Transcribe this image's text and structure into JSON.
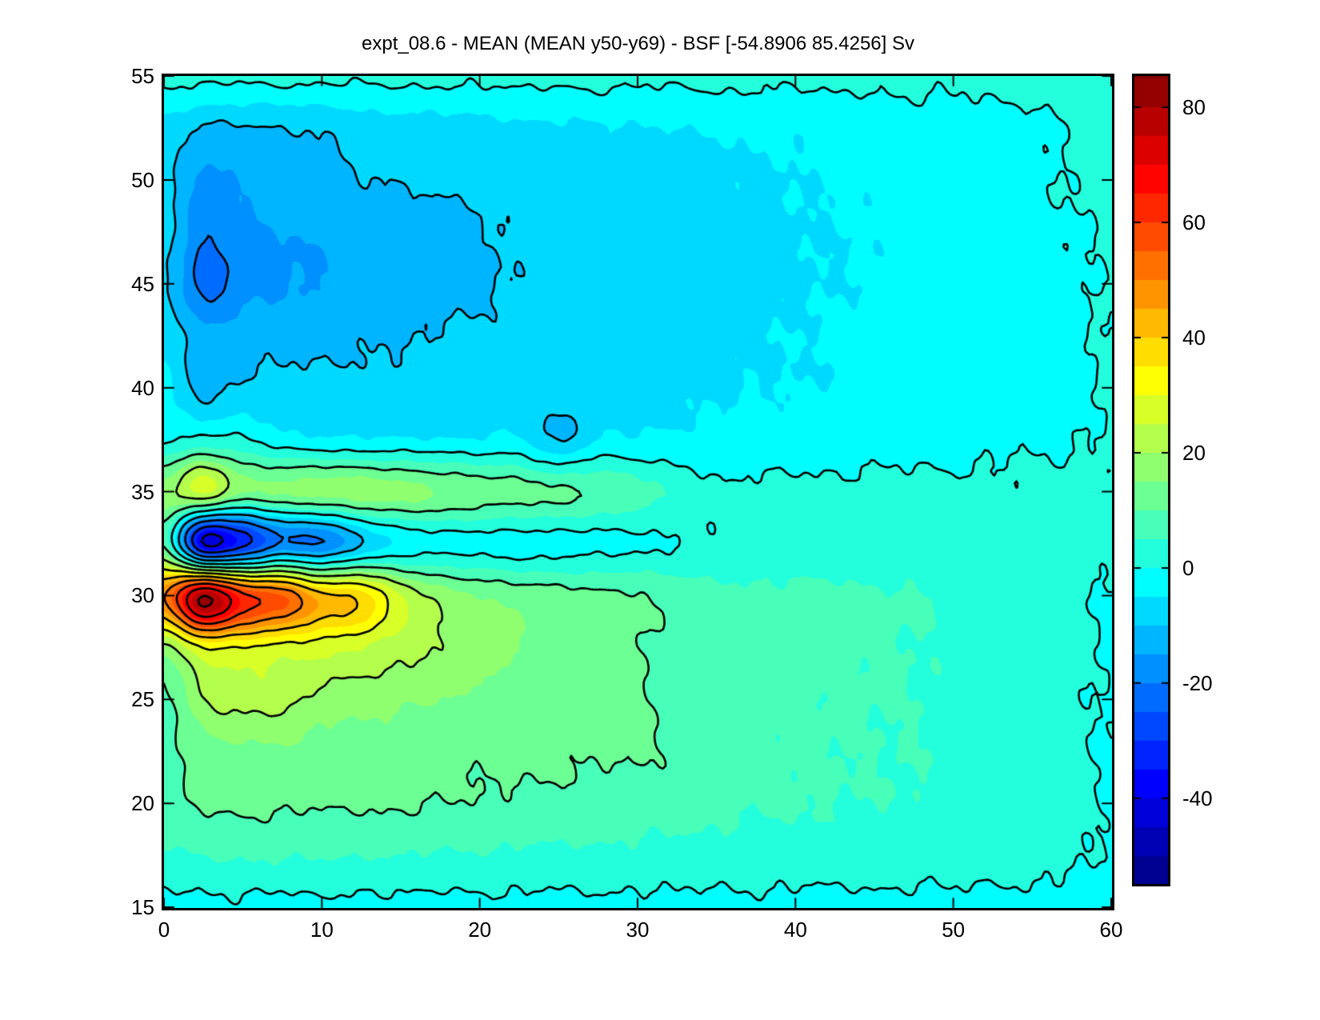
{
  "title": "expt_08.6 - MEAN (MEAN y50-y69) - BSF [-54.8906 85.4256] Sv",
  "chart_data": {
    "type": "heatmap",
    "title": "expt_08.6 - MEAN (MEAN y50-y69) - BSF [-54.8906 85.4256] Sv",
    "units": "Sv",
    "x_range": [
      0,
      60
    ],
    "y_range": [
      15,
      55
    ],
    "x_ticks": [
      0,
      10,
      20,
      30,
      40,
      50,
      60
    ],
    "y_ticks": [
      55,
      50,
      45,
      40,
      35,
      30,
      25,
      20,
      15
    ],
    "colorbar": {
      "ticks": [
        80,
        60,
        40,
        20,
        0,
        -20,
        -40
      ],
      "vmin": -54.8906,
      "vmax": 85.4256,
      "band_step": 5,
      "colormap": "jet"
    },
    "contour": {
      "solid_levels": [
        0,
        10,
        20,
        30,
        40,
        50,
        60,
        70,
        80
      ],
      "dashed_levels": [
        -10,
        -20,
        -30,
        -40
      ],
      "line_color": "#000000"
    },
    "grid_x": [
      0,
      2.5,
      5,
      7.5,
      10,
      12.5,
      15,
      17.5,
      20,
      22.5,
      25,
      27.5,
      30,
      32.5,
      35,
      37.5,
      40,
      42.5,
      45,
      47.5,
      50,
      52.5,
      55,
      57.5,
      60
    ],
    "grid_y": [
      55,
      52.5,
      50,
      47.5,
      45,
      42.5,
      40,
      37.5,
      35,
      32.5,
      30,
      27.5,
      25,
      22.5,
      20,
      17.5,
      15
    ],
    "values": [
      [
        1,
        1.5,
        1,
        1.5,
        1,
        1,
        1.5,
        1,
        1,
        1.5,
        1,
        1.5,
        1,
        1,
        1.5,
        1,
        1,
        1.5,
        1,
        1.5,
        1,
        1.5,
        2,
        1.5,
        2
      ],
      [
        -6,
        -10.5,
        -10.5,
        -10,
        -9.5,
        -8,
        -7.5,
        -7,
        -6.5,
        -6,
        -6,
        -5.5,
        -5,
        -5,
        -4.5,
        -4,
        -4,
        -3.5,
        -3,
        -2.5,
        -2,
        -1.5,
        -1,
        0.5,
        1
      ],
      [
        -8,
        -16,
        -14,
        -12,
        -11,
        -10,
        -9.5,
        -9,
        -8.5,
        -8.5,
        -8,
        -7.5,
        -7,
        -6.5,
        -6,
        -5.5,
        -5,
        -4.5,
        -4,
        -3.5,
        -3,
        -2,
        -1,
        0.5,
        0.5
      ],
      [
        -8,
        -19,
        -16,
        -15,
        -14,
        -13,
        -12,
        -11.5,
        -10.5,
        -9,
        -8.5,
        -8,
        -7.5,
        -7,
        -6.5,
        -6,
        -5.5,
        -5,
        -4.5,
        -4,
        -3,
        -2,
        -1.5,
        -0.5,
        0.5
      ],
      [
        -9,
        -22,
        -17,
        -15.5,
        -15,
        -14,
        -13,
        -12,
        -11,
        -9.5,
        -9,
        -8.5,
        -8,
        -7.5,
        -7,
        -6,
        -5.5,
        -5,
        -4.5,
        -4,
        -3.5,
        -3,
        -2,
        -1,
        0.5
      ],
      [
        -6,
        -13,
        -12,
        -12,
        -11.5,
        -11,
        -10.5,
        -9.5,
        -9,
        -8.5,
        -8,
        -7.5,
        -7,
        -6.5,
        -6,
        -5.5,
        -5,
        -4.5,
        -4,
        -3.5,
        -3,
        -2.5,
        -2,
        -1,
        0.5
      ],
      [
        -4,
        -12,
        -9,
        -8.5,
        -8.5,
        -8.5,
        -8.5,
        -8,
        -8,
        -7.5,
        -7,
        -7,
        -6.5,
        -6,
        -5.5,
        -5,
        -5,
        -4.5,
        -4,
        -3.5,
        -3,
        -2.5,
        -2,
        -1,
        0.5
      ],
      [
        -0.5,
        1.5,
        0.5,
        -3,
        -4,
        -4.5,
        -4.5,
        -4.5,
        -4.5,
        -4.5,
        -10.5,
        -4.5,
        -4.5,
        -4,
        -3.5,
        -3,
        -2.5,
        -2,
        -2,
        -1.5,
        -1.5,
        -1,
        -0.5,
        -0.5,
        0.5
      ],
      [
        18,
        26,
        15,
        16,
        17,
        18,
        17,
        15,
        13,
        12,
        11,
        9,
        7,
        4,
        1,
        1,
        1,
        1,
        1,
        1,
        1,
        1,
        1,
        1,
        1
      ],
      [
        8,
        -40,
        -32,
        -20,
        -20,
        -10,
        -4,
        -2,
        -2,
        -2.5,
        -2,
        -1.5,
        -1,
        0,
        1,
        1.5,
        1.5,
        1.5,
        1.5,
        1.5,
        1.5,
        1.5,
        1,
        1,
        1
      ],
      [
        50,
        80,
        62,
        55,
        42,
        38,
        25,
        18,
        15,
        13,
        12,
        11,
        10.5,
        8,
        6.5,
        6,
        6,
        6,
        5.5,
        5.5,
        4,
        3,
        2,
        1,
        -0.5
      ],
      [
        18,
        30,
        30,
        28,
        27,
        25,
        22,
        20,
        17,
        15,
        13,
        12,
        10.5,
        8,
        6.5,
        6,
        6,
        6,
        5.5,
        5,
        4,
        3,
        2,
        1,
        -0.5
      ],
      [
        8,
        20,
        22,
        22,
        18,
        17,
        16,
        15,
        14,
        12,
        11,
        11,
        10.5,
        8,
        6.5,
        6,
        6,
        5.5,
        5.5,
        5,
        4,
        3,
        2,
        1,
        -0.5
      ],
      [
        8,
        13,
        14,
        14,
        13,
        12.5,
        12,
        11.5,
        11,
        11,
        11,
        10.5,
        10.5,
        9,
        6.5,
        6,
        5.5,
        5.5,
        5,
        5,
        4,
        3,
        2,
        1,
        -0.5
      ],
      [
        8,
        10.5,
        11,
        11,
        10.5,
        10.5,
        10.5,
        10,
        9.5,
        9,
        8.5,
        8,
        7.5,
        7,
        6,
        5.5,
        5.5,
        5,
        5,
        4.5,
        4,
        3,
        2,
        1,
        -0.5
      ],
      [
        4,
        5,
        5.5,
        5.5,
        5.5,
        5,
        5,
        4.5,
        4.5,
        4,
        4,
        4,
        3.5,
        3.5,
        3,
        3,
        3,
        3,
        2.5,
        2.5,
        2.5,
        2,
        1.5,
        0.5,
        -0.5
      ],
      [
        -2,
        -1.5,
        -1,
        -1.5,
        -1,
        -1.5,
        -1,
        -1.5,
        -1.5,
        -1,
        -1.5,
        -1,
        -1.5,
        -1,
        -1.5,
        -1,
        -1.5,
        -1.5,
        -1,
        -1.5,
        -1,
        -1.5,
        -1,
        -1.5,
        -1.5
      ]
    ]
  }
}
